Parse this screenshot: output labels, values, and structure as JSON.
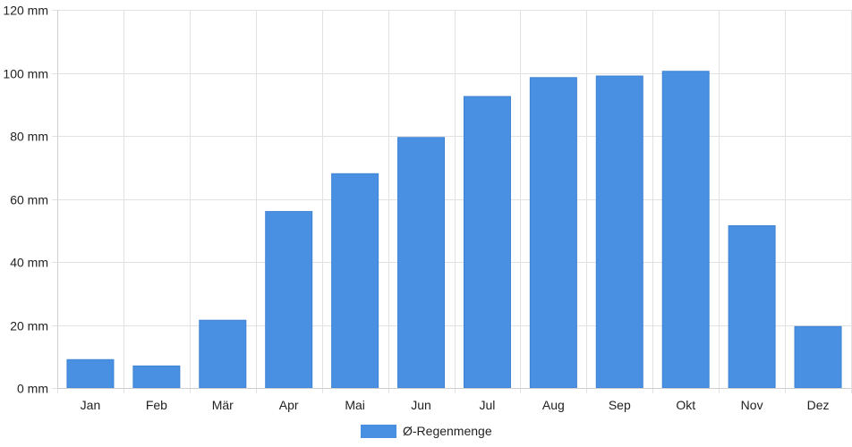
{
  "chart_data": {
    "type": "bar",
    "title": "",
    "xlabel": "",
    "ylabel": "",
    "categories": [
      "Jan",
      "Feb",
      "Mär",
      "Apr",
      "Mai",
      "Jun",
      "Jul",
      "Aug",
      "Sep",
      "Okt",
      "Nov",
      "Dez"
    ],
    "series": [
      {
        "name": "Ø-Regenmenge",
        "color": "#4a90e2",
        "values": [
          9,
          7,
          21.5,
          56,
          68,
          79.5,
          92.5,
          98.5,
          99,
          100.5,
          51.5,
          19.5
        ]
      }
    ],
    "ylim": [
      0,
      120
    ],
    "yticks": [
      0,
      20,
      40,
      60,
      80,
      100,
      120
    ],
    "y_tick_labels": [
      "0 mm",
      "20 mm",
      "40 mm",
      "60 mm",
      "80 mm",
      "100 mm",
      "120 mm"
    ],
    "grid": true,
    "legend": "bottom-center"
  }
}
